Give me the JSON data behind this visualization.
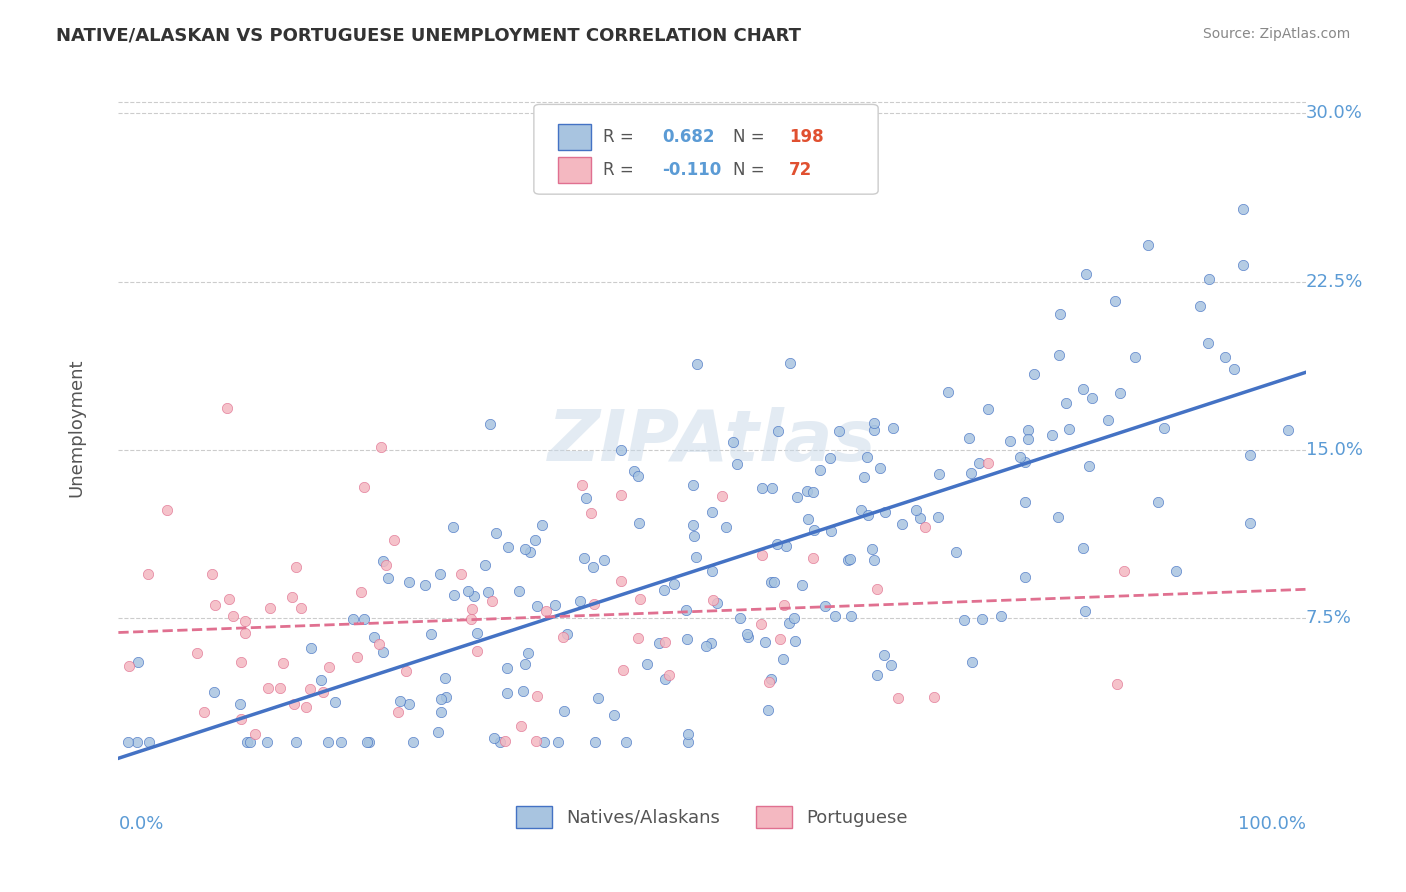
{
  "title": "NATIVE/ALASKAN VS PORTUGUESE UNEMPLOYMENT CORRELATION CHART",
  "source": "Source: ZipAtlas.com",
  "ylabel": "Unemployment",
  "xlim": [
    0.0,
    1.0
  ],
  "ylim": [
    0.0,
    0.32
  ],
  "blue_R": 0.682,
  "blue_N": 198,
  "pink_R": -0.11,
  "pink_N": 72,
  "blue_color": "#a8c4e0",
  "blue_line_color": "#4472c4",
  "pink_color": "#f4b8c1",
  "pink_line_color": "#e07090",
  "watermark": "ZIPAtlas",
  "watermark_color": "#c8d8e8",
  "legend_label_blue": "Natives/Alaskans",
  "legend_label_pink": "Portuguese",
  "title_fontsize": 13,
  "axis_color": "#5b9bd5",
  "background_color": "#ffffff",
  "grid_color": "#cccccc",
  "ytick_vals": [
    0.075,
    0.15,
    0.225,
    0.3
  ],
  "ytick_labels": [
    "7.5%",
    "15.0%",
    "22.5%",
    "30.0%"
  ]
}
